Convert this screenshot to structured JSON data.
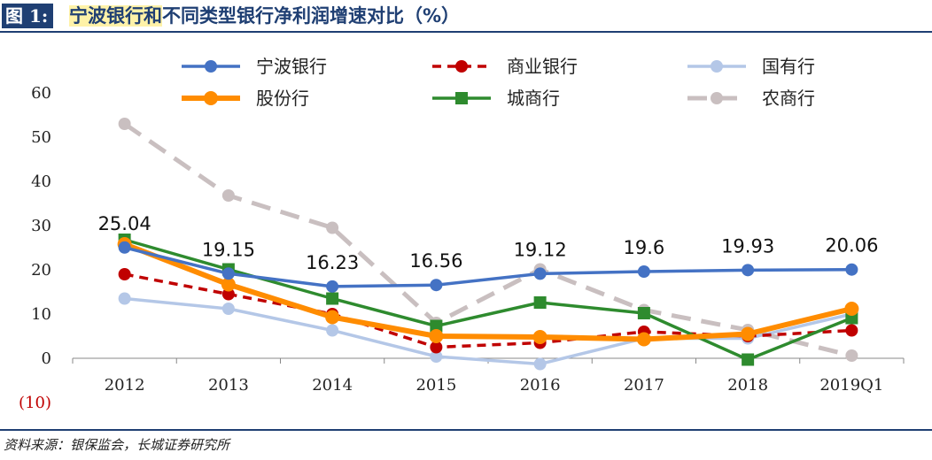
{
  "figure": {
    "label": "图 1:",
    "title_part1": "宁波银行和",
    "title_part2": "不同类型银行净利润增",
    "title_part3": "速对比（%）"
  },
  "source_note": "资料来源：银保监会，长城证券研究所",
  "chart_data": {
    "type": "line",
    "categories": [
      "2012",
      "2013",
      "2014",
      "2015",
      "2016",
      "2017",
      "2018",
      "2019Q1"
    ],
    "y_ticks": [
      "60",
      "50",
      "40",
      "30",
      "20",
      "10",
      "0",
      "(10)"
    ],
    "ylim": [
      -10,
      60
    ],
    "grid": false,
    "legend_position": "top",
    "series": [
      {
        "name": "宁波银行",
        "color": "#4472c4",
        "style": "solid",
        "marker": "circle",
        "values": [
          25.04,
          19.15,
          16.23,
          16.56,
          19.12,
          19.6,
          19.93,
          20.06
        ],
        "labels": [
          "25.04",
          "19.15",
          "16.23",
          "16.56",
          "19.12",
          "19.6",
          "19.93",
          "20.06"
        ]
      },
      {
        "name": "商业银行",
        "color": "#c00000",
        "style": "dash",
        "marker": "circle",
        "values": [
          19,
          14.5,
          10,
          2.5,
          3.5,
          6,
          5,
          6.3
        ]
      },
      {
        "name": "国有行",
        "color": "#b4c7e7",
        "style": "solid",
        "marker": "circle",
        "values": [
          13.5,
          11.2,
          6.3,
          0.4,
          -1.3,
          4.5,
          4.5,
          10
        ]
      },
      {
        "name": "股份行",
        "color": "#ff8c00",
        "style": "thick",
        "marker": "circle",
        "values": [
          25.8,
          16.7,
          9.3,
          5,
          4.8,
          4.3,
          5.5,
          11.2
        ]
      },
      {
        "name": "城商行",
        "color": "#2e8b2e",
        "style": "solid",
        "marker": "square",
        "values": [
          26.8,
          20.1,
          13.5,
          7.3,
          12.6,
          10.2,
          -0.3,
          9.1
        ]
      },
      {
        "name": "农商行",
        "color": "#c9bfc0",
        "style": "longdash",
        "marker": "circle",
        "values": [
          53,
          36.8,
          29.5,
          8,
          20.1,
          10.9,
          6.4,
          0.6
        ]
      }
    ]
  }
}
